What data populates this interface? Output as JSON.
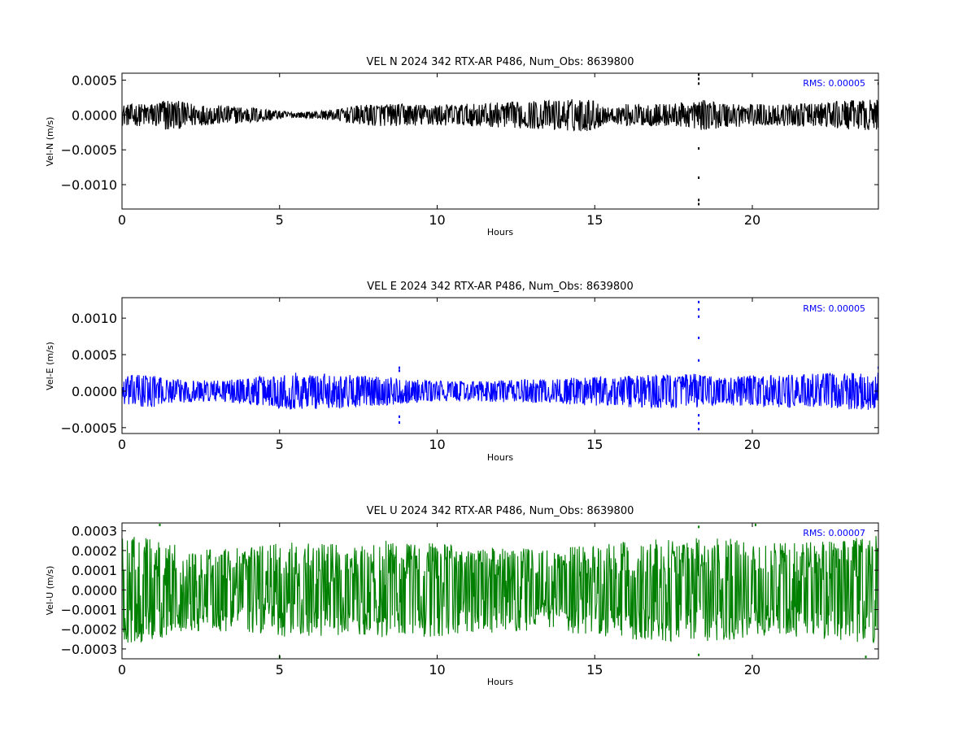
{
  "chart_data": [
    {
      "type": "line",
      "title": "VEL N 2024 342 RTX-AR  P486, Num_Obs: 8639800",
      "xlabel": "Hours",
      "ylabel": "Vel-N (m/s)",
      "xlim": [
        0,
        24
      ],
      "ylim": [
        -0.00135,
        0.0006
      ],
      "xticks": [
        0,
        5,
        10,
        15,
        20
      ],
      "xtick_labels": [
        "0",
        "5",
        "10",
        "15",
        "20"
      ],
      "yticks": [
        0.0005,
        0.0,
        -0.0005,
        -0.001
      ],
      "ytick_labels": [
        "0.0005",
        "0.0000",
        "−0.0005",
        "−0.0010"
      ],
      "color": "#000000",
      "annotation": "RMS:  0.00005",
      "annotation_color": "#0000ff",
      "envelope": {
        "x": [
          0,
          0.5,
          1.0,
          1.4,
          1.8,
          2.5,
          3.5,
          4.5,
          5.0,
          5.5,
          6.0,
          6.5,
          7.0,
          7.5,
          8.0,
          9.0,
          10.0,
          11.0,
          12.0,
          13.0,
          14.0,
          14.5,
          15.0,
          15.5,
          16.0,
          17.0,
          18.0,
          18.3,
          19.0,
          20.0,
          21.0,
          22.0,
          23.0,
          24.0
        ],
        "amplitude": [
          0.00015,
          0.00016,
          0.00017,
          0.00024,
          0.0002,
          0.00015,
          0.00013,
          0.0001,
          6e-05,
          4e-05,
          5e-05,
          7e-05,
          0.0001,
          0.00014,
          0.00016,
          0.00016,
          0.00015,
          0.00016,
          0.00018,
          0.0002,
          0.00022,
          0.00024,
          0.00022,
          9e-05,
          0.00016,
          0.00016,
          0.00018,
          0.00022,
          0.00019,
          0.00016,
          0.00016,
          0.00017,
          0.00021,
          0.00022
        ]
      },
      "spikes": [
        {
          "x": 18.3,
          "y": [
            0.00058,
            0.00052,
            0.00045,
            -0.00048,
            -0.0009,
            -0.00122,
            -0.00128
          ]
        },
        {
          "x": 24.0,
          "y": [
            0.00045
          ]
        }
      ]
    },
    {
      "type": "line",
      "title": "VEL E 2024 342 RTX-AR  P486, Num_Obs: 8639800",
      "xlabel": "Hours",
      "ylabel": "Vel-E (m/s)",
      "xlim": [
        0,
        24
      ],
      "ylim": [
        -0.00058,
        0.00128
      ],
      "xticks": [
        0,
        5,
        10,
        15,
        20
      ],
      "xtick_labels": [
        "0",
        "5",
        "10",
        "15",
        "20"
      ],
      "yticks": [
        0.001,
        0.0005,
        0.0,
        -0.0005
      ],
      "ytick_labels": [
        "0.0010",
        "0.0005",
        "0.0000",
        "−0.0005"
      ],
      "color": "#0000ff",
      "annotation": "RMS:  0.00005",
      "annotation_color": "#0000ff",
      "envelope": {
        "x": [
          0,
          0.7,
          1.5,
          2.5,
          3.5,
          4.5,
          5.5,
          6.5,
          7.5,
          8.5,
          9.5,
          10.5,
          11.5,
          12.5,
          13.5,
          14.5,
          15.5,
          16.5,
          17.5,
          18.3,
          19.0,
          20.0,
          21.0,
          22.0,
          23.0,
          24.0
        ],
        "amplitude": [
          0.00019,
          0.00025,
          0.00016,
          0.00015,
          0.00016,
          0.00021,
          0.00026,
          0.00024,
          0.00022,
          0.00019,
          0.00015,
          0.00014,
          0.00014,
          0.00016,
          0.00016,
          0.0002,
          0.00021,
          0.00023,
          0.00023,
          0.00024,
          0.00018,
          0.00022,
          0.00022,
          0.00024,
          0.00025,
          0.00027
        ]
      },
      "spikes": [
        {
          "x": 8.8,
          "y": [
            0.00032,
            0.00028,
            -0.00035,
            -0.00043
          ]
        },
        {
          "x": 18.3,
          "y": [
            0.00122,
            0.00112,
            0.00102,
            0.00073,
            0.00042,
            -0.00033,
            -0.00044,
            -0.00052
          ]
        },
        {
          "x": 24.0,
          "y": [
            0.00032
          ]
        }
      ]
    },
    {
      "type": "line",
      "title": "VEL U 2024 342 RTX-AR  P486, Num_Obs: 8639800",
      "xlabel": "Hours",
      "ylabel": "Vel-U (m/s)",
      "xlim": [
        0,
        24
      ],
      "ylim": [
        -0.00035,
        0.00034
      ],
      "xticks": [
        0,
        5,
        10,
        15,
        20
      ],
      "xtick_labels": [
        "0",
        "5",
        "10",
        "15",
        "20"
      ],
      "yticks": [
        0.0003,
        0.0002,
        0.0001,
        0.0,
        -0.0001,
        -0.0002,
        -0.0003
      ],
      "ytick_labels": [
        "0.0003",
        "0.0002",
        "0.0001",
        "0.0000",
        "−0.0001",
        "−0.0002",
        "−0.0003"
      ],
      "color": "#008000",
      "annotation": "RMS:  0.00007",
      "annotation_color": "#0000ff",
      "envelope": {
        "x": [
          0,
          1.0,
          2.0,
          3.0,
          4.0,
          5.0,
          6.0,
          7.0,
          8.0,
          9.0,
          10.0,
          11.0,
          12.0,
          13.0,
          14.0,
          15.0,
          16.0,
          17.0,
          18.0,
          19.0,
          20.0,
          21.0,
          22.0,
          23.0,
          24.0
        ],
        "amplitude": [
          0.00027,
          0.00027,
          0.00021,
          0.00021,
          0.00022,
          0.00024,
          0.00024,
          0.00023,
          0.00025,
          0.00025,
          0.00024,
          0.00022,
          0.00022,
          0.00021,
          0.00022,
          0.00023,
          0.00025,
          0.00026,
          0.00027,
          0.00027,
          0.00024,
          0.00024,
          0.00025,
          0.00026,
          0.00028
        ]
      },
      "spikes": [
        {
          "x": 1.2,
          "y": [
            0.00033
          ]
        },
        {
          "x": 5.0,
          "y": [
            -0.00034
          ]
        },
        {
          "x": 18.3,
          "y": [
            0.00032,
            -0.00033
          ]
        },
        {
          "x": 20.1,
          "y": [
            0.00033
          ]
        },
        {
          "x": 23.6,
          "y": [
            -0.00034
          ]
        }
      ]
    }
  ]
}
